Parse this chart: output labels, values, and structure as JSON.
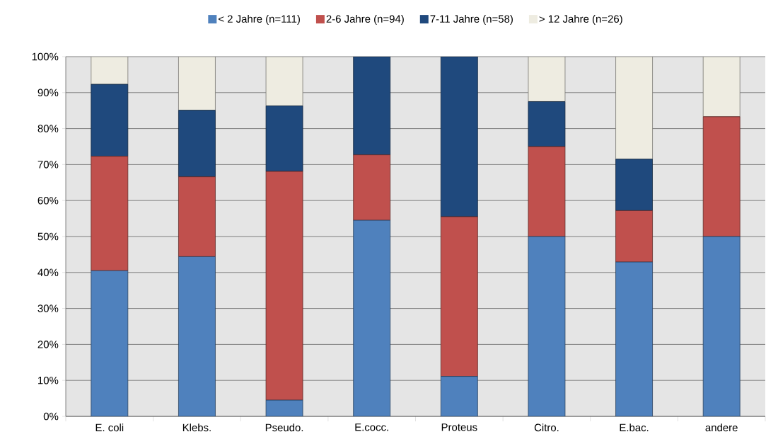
{
  "chart_data": {
    "type": "bar",
    "stacked": true,
    "categories": [
      "E. coli",
      "Klebs.",
      "Pseudo.",
      "E.cocc.",
      "Proteus",
      "Citro.",
      "E.bac.",
      "andere"
    ],
    "series": [
      {
        "name": "< 2 Jahre (n=111)",
        "color": "#4f81bd",
        "values": [
          40.5,
          44.4,
          4.5,
          54.5,
          11.1,
          50,
          42.9,
          50
        ]
      },
      {
        "name": "2-6 Jahre (n=94)",
        "color": "#c0504d",
        "values": [
          31.8,
          22.2,
          63.6,
          18.2,
          44.4,
          25,
          14.3,
          33.3
        ]
      },
      {
        "name": "7-11 Jahre (n=58)",
        "color": "#1f497d",
        "values": [
          20,
          18.5,
          18.2,
          27.3,
          44.5,
          12.5,
          14.3,
          null
        ]
      },
      {
        "name": "> 12 Jahre (n=26)",
        "color": "#eeece1",
        "values": [
          7.7,
          14.9,
          13.7,
          null,
          null,
          12.5,
          28.5,
          16.7
        ]
      }
    ],
    "ylim": [
      0,
      100
    ],
    "yticks": [
      {
        "value": 0,
        "label": "0%"
      },
      {
        "value": 10,
        "label": "10%"
      },
      {
        "value": 20,
        "label": "20%"
      },
      {
        "value": 30,
        "label": "30%"
      },
      {
        "value": 40,
        "label": "40%"
      },
      {
        "value": 50,
        "label": "50%"
      },
      {
        "value": 60,
        "label": "60%"
      },
      {
        "value": 70,
        "label": "70%"
      },
      {
        "value": 80,
        "label": "80%"
      },
      {
        "value": 90,
        "label": "90%"
      },
      {
        "value": 100,
        "label": "100%"
      }
    ],
    "grid": "y",
    "legend": "top"
  }
}
